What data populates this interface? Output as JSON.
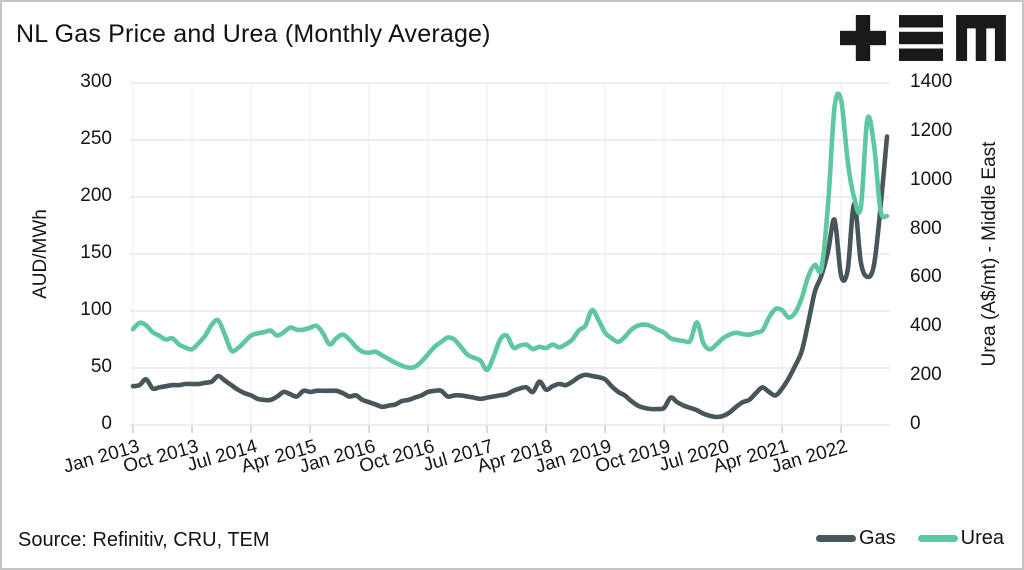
{
  "page": {
    "source": "Source: Refinitiv, CRU, TEM",
    "logo_name": "TEM"
  },
  "chart_data": {
    "type": "line",
    "title": "NL Gas Price and Urea (Monthly Average)",
    "x_start": "2013-01",
    "x_end": "2022-08",
    "x_frequency": "monthly",
    "x_tick_labels": [
      "Jan 2013",
      "Oct 2013",
      "Jul 2014",
      "Apr 2015",
      "Jan 2016",
      "Oct 2016",
      "Jul 2017",
      "Apr 2018",
      "Jan 2019",
      "Oct 2019",
      "Jul 2020",
      "Apr 2021",
      "Jan 2022"
    ],
    "x_tick_month_indices": [
      0,
      9,
      18,
      27,
      36,
      45,
      54,
      63,
      72,
      81,
      90,
      99,
      108
    ],
    "grid": {
      "horizontal": true,
      "vertical_faint": true
    },
    "legend_position": "bottom-right",
    "left_axis": {
      "label": "AUD/MWh",
      "range": [
        0,
        300
      ],
      "ticks": [
        0,
        50,
        100,
        150,
        200,
        250,
        300
      ]
    },
    "right_axis": {
      "label": "Urea (A$/mt) - Middle East",
      "range": [
        0,
        1400
      ],
      "ticks": [
        0,
        200,
        400,
        600,
        800,
        1000,
        1200,
        1400
      ]
    },
    "series": [
      {
        "name": "Gas",
        "axis": "left",
        "color": "#47565a",
        "values": [
          34,
          35,
          40,
          32,
          33,
          34,
          35,
          35,
          36,
          36,
          36,
          37,
          38,
          43,
          39,
          35,
          31,
          28,
          26,
          23,
          22,
          22,
          25,
          29,
          27,
          25,
          30,
          29,
          30,
          30,
          30,
          30,
          28,
          25,
          26,
          22,
          20,
          18,
          16,
          17,
          18,
          21,
          22,
          24,
          26,
          29,
          30,
          30,
          25,
          26,
          26,
          25,
          24,
          23,
          24,
          25,
          26,
          27,
          30,
          32,
          33,
          29,
          38,
          31,
          34,
          36,
          35,
          38,
          42,
          44,
          43,
          42,
          40,
          34,
          29,
          26,
          21,
          17,
          15,
          14,
          14,
          15,
          24,
          20,
          17,
          15,
          13,
          10,
          8,
          7,
          8,
          11,
          16,
          20,
          22,
          28,
          33,
          29,
          26,
          32,
          41,
          52,
          65,
          90,
          117,
          131,
          152,
          180,
          131,
          136,
          194,
          143,
          130,
          140,
          190,
          253
        ]
      },
      {
        "name": "Urea",
        "axis": "right",
        "color": "#5fc79f",
        "values": [
          392,
          418,
          408,
          380,
          366,
          350,
          355,
          330,
          317,
          310,
          335,
          365,
          410,
          428,
          370,
          305,
          315,
          340,
          366,
          375,
          380,
          386,
          366,
          380,
          399,
          390,
          390,
          398,
          406,
          375,
          330,
          355,
          370,
          350,
          320,
          300,
          296,
          300,
          285,
          270,
          255,
          243,
          235,
          238,
          260,
          290,
          320,
          340,
          358,
          350,
          320,
          288,
          275,
          263,
          226,
          280,
          350,
          366,
          317,
          325,
          329,
          311,
          320,
          315,
          329,
          318,
          330,
          350,
          387,
          407,
          470,
          430,
          378,
          355,
          340,
          360,
          390,
          407,
          411,
          405,
          390,
          378,
          355,
          348,
          344,
          345,
          420,
          335,
          310,
          330,
          355,
          370,
          378,
          372,
          370,
          378,
          387,
          440,
          475,
          470,
          440,
          460,
          520,
          610,
          655,
          640,
          900,
          1300,
          1330,
          1080,
          930,
          890,
          1250,
          1150,
          880,
          855
        ]
      }
    ]
  }
}
